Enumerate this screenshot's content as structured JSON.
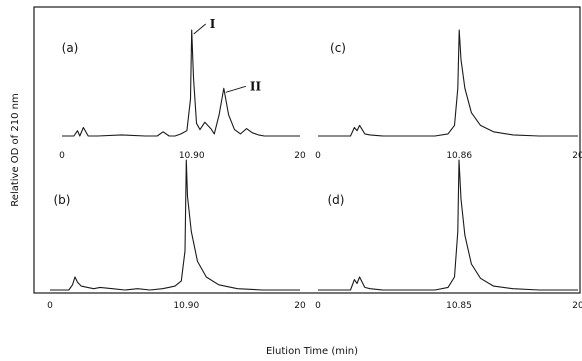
{
  "chart_data": {
    "type": "line",
    "xlabel": "Elution Time (min)",
    "ylabel": "Relative OD of 210 nm",
    "panels": [
      {
        "label": "(a)",
        "x_ticks": [
          "0",
          "10.90",
          "20"
        ],
        "peak_labels": [
          "I",
          "II"
        ],
        "series": [
          {
            "x": [
              0,
              1,
              1.3,
              1.5,
              1.8,
              2.2,
              3,
              5,
              7,
              8,
              8.5,
              9,
              9.5,
              10,
              10.5,
              10.8,
              10.9,
              11.05,
              11.3,
              11.6,
              12,
              12.5,
              12.8,
              13.2,
              13.6,
              14,
              14.5,
              15,
              15.5,
              16,
              16.5,
              17,
              18,
              20
            ],
            "y": [
              0,
              0,
              0.05,
              0,
              0.08,
              0,
              0,
              0.01,
              0,
              0,
              0.04,
              0,
              0,
              0.02,
              0.05,
              0.35,
              1.0,
              0.55,
              0.12,
              0.06,
              0.13,
              0.07,
              0.02,
              0.2,
              0.45,
              0.2,
              0.06,
              0.02,
              0.07,
              0.03,
              0.01,
              0,
              0,
              0
            ]
          }
        ]
      },
      {
        "label": "(b)",
        "x_ticks": [
          "0",
          "10.90",
          "20"
        ],
        "series": [
          {
            "x": [
              0,
              1.5,
              1.8,
              2.0,
              2.2,
              2.5,
              3,
              3.5,
              4,
              5,
              6,
              7,
              8,
              9,
              9.5,
              10,
              10.5,
              10.8,
              10.9,
              11.0,
              11.3,
              11.8,
              12.5,
              13.5,
              15,
              17,
              20
            ],
            "y": [
              0,
              0,
              0.04,
              0.1,
              0.06,
              0.03,
              0.02,
              0.01,
              0.02,
              0.01,
              0,
              0.01,
              0,
              0.01,
              0.02,
              0.03,
              0.07,
              0.3,
              1.0,
              0.72,
              0.45,
              0.22,
              0.1,
              0.04,
              0.01,
              0,
              0
            ]
          }
        ]
      },
      {
        "label": "(c)",
        "x_ticks": [
          "0",
          "10.86",
          "20"
        ],
        "series": [
          {
            "x": [
              0,
              2.5,
              2.8,
              3.0,
              3.2,
              3.4,
              3.6,
              4.0,
              5,
              7,
              9,
              10,
              10.5,
              10.75,
              10.86,
              11.0,
              11.3,
              11.8,
              12.5,
              13.5,
              15,
              17,
              20
            ],
            "y": [
              0,
              0,
              0.08,
              0.05,
              0.1,
              0.06,
              0.02,
              0.01,
              0,
              0,
              0,
              0.02,
              0.1,
              0.45,
              1.0,
              0.72,
              0.45,
              0.22,
              0.1,
              0.04,
              0.01,
              0,
              0
            ]
          }
        ]
      },
      {
        "label": "(d)",
        "x_ticks": [
          "0",
          "10.85",
          "20"
        ],
        "series": [
          {
            "x": [
              0,
              2.5,
              2.8,
              3.0,
              3.2,
              3.4,
              3.6,
              4.0,
              5,
              7,
              9,
              10,
              10.5,
              10.75,
              10.85,
              11.0,
              11.3,
              11.8,
              12.5,
              13.5,
              15,
              17,
              20
            ],
            "y": [
              0,
              0,
              0.08,
              0.05,
              0.1,
              0.06,
              0.02,
              0.01,
              0,
              0,
              0,
              0.02,
              0.1,
              0.45,
              1.0,
              0.7,
              0.42,
              0.2,
              0.09,
              0.03,
              0.01,
              0,
              0
            ]
          }
        ]
      }
    ]
  }
}
